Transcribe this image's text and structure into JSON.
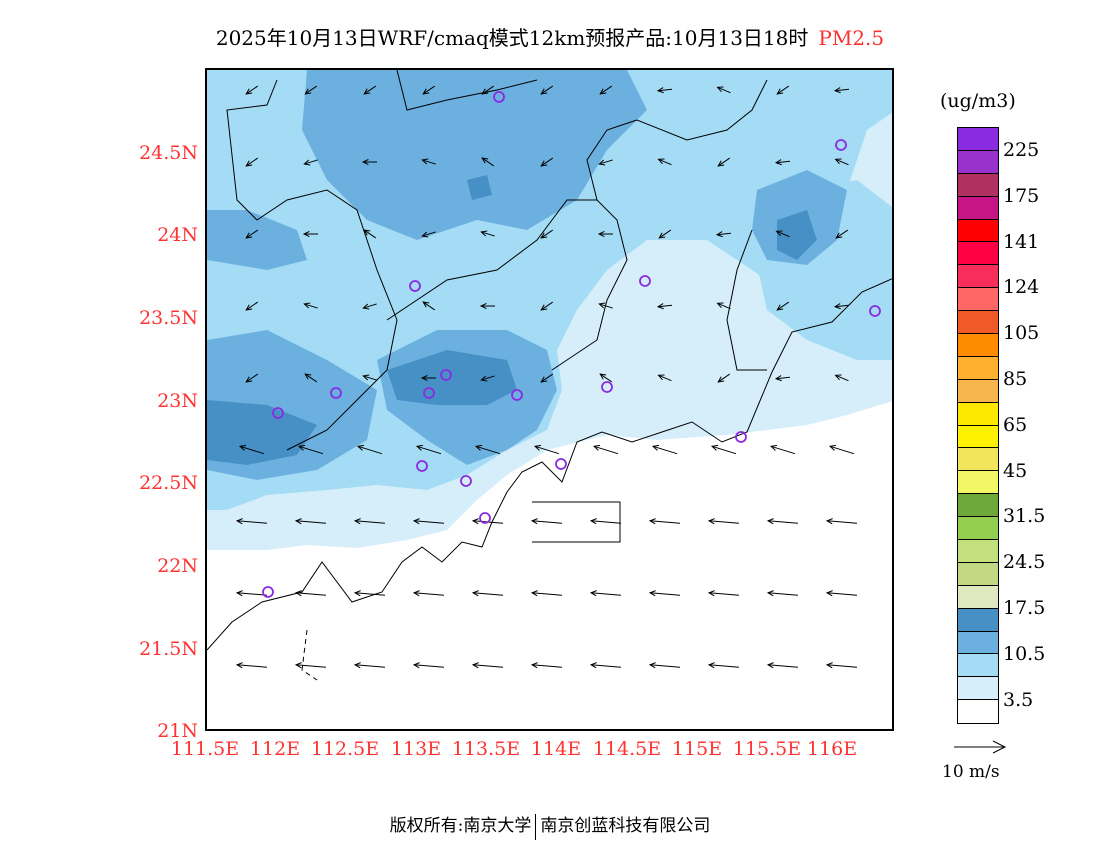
{
  "title": {
    "main": "2025年10月13日WRF/cmaq模式12km预报产品:10月13日18时",
    "species": "PM2.5"
  },
  "axes": {
    "lat_labels": [
      "21N",
      "21.5N",
      "22N",
      "22.5N",
      "23N",
      "23.5N",
      "24N",
      "24.5N"
    ],
    "lon_labels": [
      "111.5E",
      "112E",
      "112.5E",
      "113E",
      "113.5E",
      "114E",
      "114.5E",
      "115E",
      "115.5E",
      "116E"
    ],
    "label_color": "#ff3333"
  },
  "colorbar": {
    "unit": "(ug/m3)",
    "colors": [
      "#8a2be2",
      "#9932cc",
      "#b03060",
      "#c71585",
      "#ff0000",
      "#ff0044",
      "#f72d5a",
      "#ff6666",
      "#f05a28",
      "#ff8c00",
      "#ffb02e",
      "#f7b64c",
      "#ffe800",
      "#fff200",
      "#f2e55c",
      "#f2f766",
      "#6eaa3a",
      "#92cf50",
      "#c3e07e",
      "#c3d882",
      "#dfe9c0",
      "#4690c6",
      "#6cb0e0",
      "#a5dcf5",
      "#d6eefa",
      "#ffffff"
    ],
    "labels": [
      "225",
      "175",
      "141",
      "124",
      "105",
      "85",
      "65",
      "45",
      "31.5",
      "24.5",
      "17.5",
      "10.5",
      "3.5"
    ]
  },
  "wind_reference": {
    "label": "10 m/s"
  },
  "footer": {
    "left": "版权所有:南京大学",
    "right": "南京创蓝科技有限公司"
  }
}
